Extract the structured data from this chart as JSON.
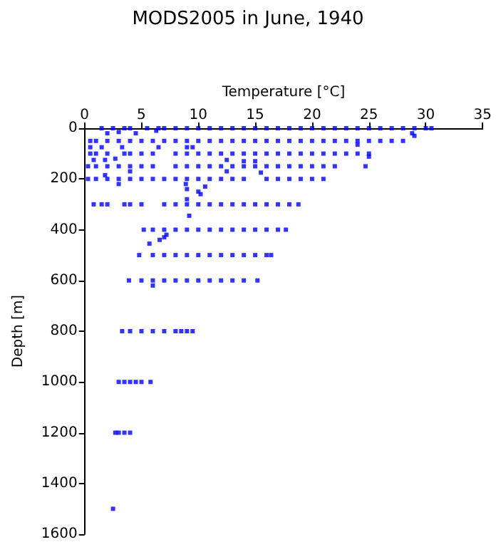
{
  "chart_data": {
    "type": "scatter",
    "title": "MODS2005 in June, 1940",
    "xlabel": "Temperature [°C]",
    "ylabel": "Depth [m]",
    "xlim": [
      0,
      35
    ],
    "xticks": [
      0,
      5,
      10,
      15,
      20,
      25,
      30,
      35
    ],
    "ylim": [
      1600,
      0
    ],
    "yticks": [
      0,
      200,
      400,
      600,
      800,
      1000,
      1200,
      1400,
      1600
    ],
    "grid": false,
    "marker": "square",
    "series": [
      {
        "color": "#0000ff",
        "x": [
          1.5,
          2.5,
          3.5,
          4,
          5.5,
          6.5,
          7,
          8,
          9,
          10,
          11,
          12,
          13,
          14,
          15,
          16,
          17,
          18,
          19,
          20,
          21,
          22,
          23,
          24,
          25,
          26,
          27,
          28,
          29,
          30,
          30.5
        ],
        "values": [
          0,
          0,
          0,
          0,
          0,
          0,
          0,
          0,
          0,
          0,
          0,
          0,
          0,
          0,
          0,
          0,
          0,
          0,
          0,
          0,
          0,
          0,
          0,
          0,
          0,
          0,
          0,
          0,
          0,
          0,
          0
        ]
      },
      {
        "color": "#0000ff",
        "x": [
          2,
          3,
          4.5,
          6.3,
          28.8,
          29,
          24,
          25
        ],
        "values": [
          20,
          15,
          20,
          10,
          20,
          30,
          65,
          112
        ]
      },
      {
        "color": "#0000ff",
        "x": [
          0.5,
          1,
          2,
          3,
          4,
          5,
          6,
          7,
          8,
          9,
          10,
          11,
          12,
          13,
          14,
          15,
          16,
          17,
          18,
          19,
          20,
          21,
          22,
          23,
          24,
          25,
          26,
          27,
          28
        ],
        "values": [
          50,
          50,
          50,
          50,
          50,
          50,
          50,
          50,
          50,
          50,
          50,
          50,
          50,
          50,
          50,
          50,
          50,
          50,
          50,
          50,
          50,
          50,
          50,
          50,
          50,
          50,
          50,
          50,
          50
        ]
      },
      {
        "color": "#0000ff",
        "x": [
          0.5,
          1.5,
          3.3,
          6.5,
          9,
          9.5,
          0.8,
          1.8,
          2.7,
          12.5,
          14,
          15
        ],
        "values": [
          75,
          75,
          75,
          75,
          75,
          75,
          125,
          125,
          120,
          125,
          130,
          130
        ]
      },
      {
        "color": "#0000ff",
        "x": [
          0.5,
          1,
          2,
          3.5,
          4,
          5,
          6,
          8,
          9,
          10,
          11,
          12,
          13,
          14,
          15,
          16,
          17,
          18,
          19,
          20,
          21,
          22,
          23,
          24,
          25
        ],
        "values": [
          100,
          100,
          100,
          100,
          100,
          100,
          100,
          100,
          100,
          100,
          100,
          100,
          100,
          100,
          100,
          100,
          100,
          100,
          100,
          100,
          100,
          100,
          100,
          100,
          100
        ]
      },
      {
        "color": "#0000ff",
        "x": [
          0.3,
          1,
          2,
          3,
          4,
          5,
          6,
          8,
          9,
          10,
          11,
          12,
          13,
          14,
          15,
          16,
          17,
          18,
          19,
          20,
          21,
          22,
          24.7,
          4,
          12.5,
          15.5
        ],
        "values": [
          150,
          150,
          150,
          150,
          150,
          150,
          150,
          150,
          150,
          150,
          150,
          150,
          150,
          150,
          150,
          150,
          150,
          150,
          150,
          150,
          150,
          150,
          150,
          170,
          170,
          175
        ]
      },
      {
        "color": "#0000ff",
        "x": [
          0.3,
          1,
          2,
          3,
          4,
          5,
          6,
          7,
          8,
          9,
          10,
          11,
          12,
          13,
          14,
          16,
          17,
          18,
          19,
          20,
          21,
          1.8,
          3,
          8.9,
          9,
          10,
          10.2,
          10.6,
          9
        ],
        "values": [
          200,
          200,
          200,
          200,
          200,
          200,
          200,
          200,
          200,
          200,
          200,
          200,
          200,
          200,
          200,
          200,
          200,
          200,
          200,
          200,
          200,
          185,
          220,
          220,
          240,
          250,
          260,
          230,
          280
        ]
      },
      {
        "color": "#0000ff",
        "x": [
          0.8,
          1.5,
          2,
          3.5,
          4,
          5,
          7,
          8,
          9,
          10,
          11,
          12,
          13,
          14,
          15,
          16,
          17,
          18,
          18.8,
          9.2
        ],
        "values": [
          300,
          300,
          300,
          300,
          300,
          300,
          300,
          300,
          300,
          300,
          300,
          300,
          300,
          300,
          300,
          300,
          300,
          300,
          300,
          345
        ]
      },
      {
        "color": "#0000ff",
        "x": [
          5.2,
          6,
          7,
          8,
          9,
          10,
          11,
          12,
          13,
          14,
          15,
          16,
          17,
          17.7,
          7.2,
          7,
          6.6,
          5.7
        ],
        "values": [
          400,
          400,
          400,
          400,
          400,
          400,
          400,
          400,
          400,
          400,
          400,
          400,
          400,
          400,
          420,
          430,
          440,
          455
        ]
      },
      {
        "color": "#0000ff",
        "x": [
          4.8,
          6,
          7,
          8,
          9,
          10,
          11,
          12,
          13,
          14,
          15,
          16,
          16.4
        ],
        "values": [
          500,
          500,
          500,
          500,
          500,
          500,
          500,
          500,
          500,
          500,
          500,
          500,
          500
        ]
      },
      {
        "color": "#0000ff",
        "x": [
          3.9,
          5,
          6,
          7,
          8,
          9,
          10,
          11,
          12,
          13,
          14,
          15.2,
          6
        ],
        "values": [
          600,
          600,
          600,
          600,
          600,
          600,
          600,
          600,
          600,
          600,
          600,
          600,
          620
        ]
      },
      {
        "color": "#0000ff",
        "x": [
          3.3,
          4,
          5,
          6,
          7,
          8,
          8.5,
          9,
          9.5
        ],
        "values": [
          800,
          800,
          800,
          800,
          800,
          800,
          800,
          800,
          800
        ]
      },
      {
        "color": "#0000ff",
        "x": [
          3,
          3.5,
          4,
          4.5,
          5,
          5.8
        ],
        "values": [
          1000,
          1000,
          1000,
          1000,
          1000,
          1000
        ]
      },
      {
        "color": "#0000ff",
        "x": [
          2.7,
          3,
          3.5,
          4,
          2.5
        ],
        "values": [
          1200,
          1200,
          1200,
          1200,
          1500
        ]
      }
    ]
  }
}
